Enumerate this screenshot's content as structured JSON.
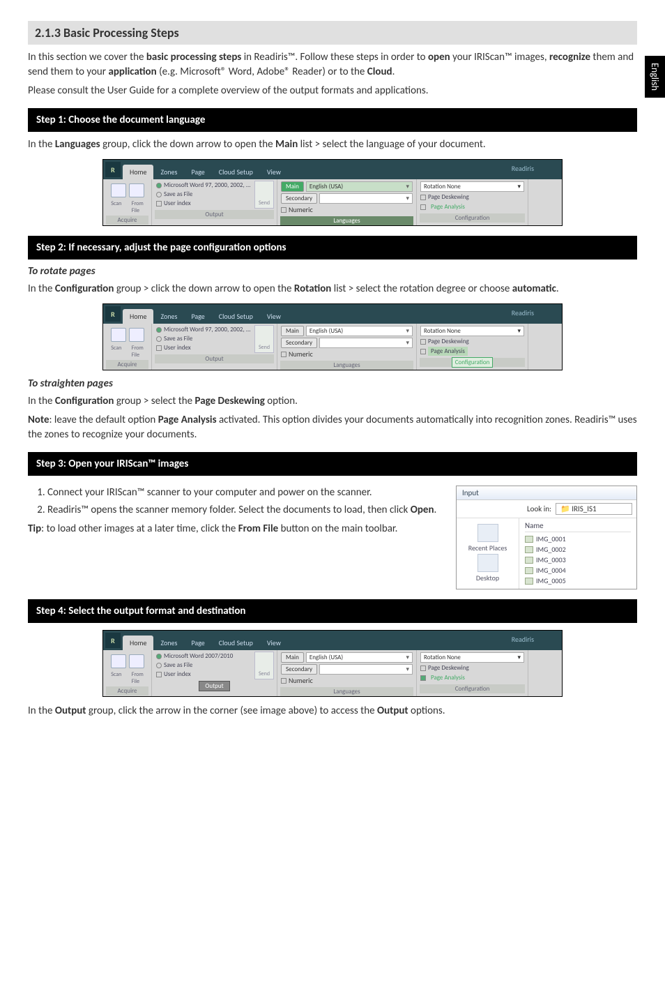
{
  "sideTab": "English",
  "heading": "2.1.3 Basic Processing Steps",
  "intro1_a": "In this section we cover the ",
  "intro1_b": "basic processing steps",
  "intro1_c": " in Readiris™. Follow these steps in order to ",
  "intro1_d": "open",
  "intro1_e": " your IRIScan™ images, ",
  "intro1_f": "recognize",
  "intro1_g": " them and send them to your ",
  "intro1_h": "application",
  "intro1_i": " (e.g. Microsoft® Word, Adobe® Reader) or to the ",
  "intro1_j": "Cloud",
  "intro1_k": ".",
  "intro2": "Please consult the User Guide for a complete overview of the output formats and applications.",
  "step1": {
    "title": "Step 1: Choose the document language",
    "body_a": "In the ",
    "body_b": "Languages",
    "body_c": " group, click the down arrow to open the ",
    "body_d": "Main",
    "body_e": " list > select the language of your document."
  },
  "step2": {
    "title": "Step 2: If necessary, adjust the page configuration options",
    "rotateHeading": "To rotate pages",
    "rotate_a": "In the ",
    "rotate_b": "Configuration",
    "rotate_c": " group > click the down arrow to open the ",
    "rotate_d": "Rotation",
    "rotate_e": " list > select the rotation degree or choose ",
    "rotate_f": "automatic",
    "rotate_g": ".",
    "straightenHeading": "To straighten pages",
    "straighten_a": "In the ",
    "straighten_b": "Configuration",
    "straighten_c": " group > select the ",
    "straighten_d": "Page Deskewing",
    "straighten_e": " option.",
    "note_a": "Note",
    "note_b": ": leave the default option ",
    "note_c": "Page Analysis",
    "note_d": " activated. This option divides your documents automatically into recognition zones. Readiris™ uses the zones to recognize your documents."
  },
  "step3": {
    "title": "Step 3: Open your IRIScan™ images",
    "li1": "Connect your IRIScan™ scanner to your computer and power on the scanner.",
    "li2_a": "Readiris™ opens the scanner memory folder. Select the documents to load, then click ",
    "li2_b": "Open",
    "li2_c": ".",
    "tip_a": "Tip",
    "tip_b": ": to load other images at a later time, click the ",
    "tip_c": "From File",
    "tip_d": " button on the main toolbar."
  },
  "step4": {
    "title": "Step 4: Select the output format and destination",
    "body_a": "In the ",
    "body_b": "Output",
    "body_c": " group, click the arrow in the corner (see image above) to access the ",
    "body_d": "Output",
    "body_e": " options."
  },
  "ribbon": {
    "appTitle": "Readiris",
    "tabs": {
      "home": "Home",
      "zones": "Zones",
      "page": "Page",
      "cloud": "Cloud Setup",
      "view": "View"
    },
    "acquire": {
      "scan": "Scan",
      "fromFile": "From\nFile",
      "group": "Acquire"
    },
    "output": {
      "opt1": "Microsoft Word 97, 2000, 2002, ...",
      "opt1b": "Microsoft Word 2007/2010",
      "opt2": "Save as File",
      "opt3": "User index",
      "send": "Send",
      "group": "Output"
    },
    "lang": {
      "main": "Main",
      "mainVal": "English (USA)",
      "secondary": "Secondary",
      "numeric": "Numeric",
      "group": "Languages"
    },
    "config": {
      "rotation": "Rotation",
      "rotationVal": "None",
      "deskew": "Page Deskewing",
      "analysis": "Page Analysis",
      "group": "Configuration"
    }
  },
  "inputPanel": {
    "title": "Input",
    "lookin": "Look in:",
    "lookinVal": "IRIS_IS1",
    "recent": "Recent Places",
    "desktop": "Desktop",
    "nameHdr": "Name",
    "files": [
      "IMG_0001",
      "IMG_0002",
      "IMG_0003",
      "IMG_0004",
      "IMG_0005"
    ]
  }
}
